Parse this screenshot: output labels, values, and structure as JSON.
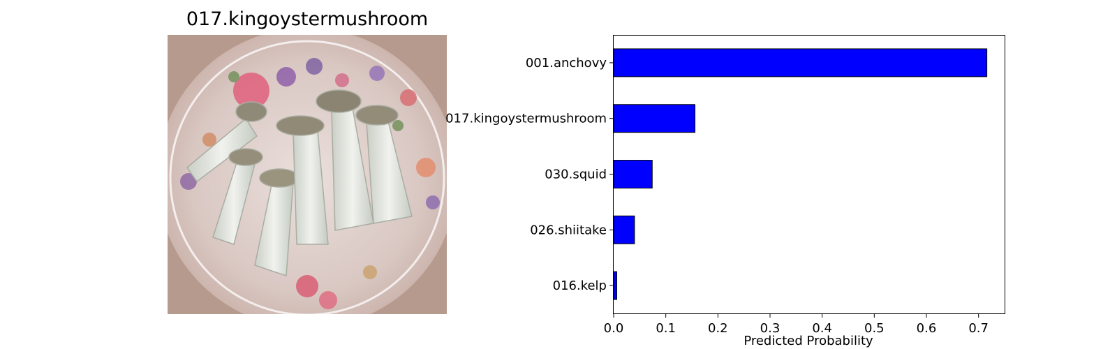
{
  "image_panel": {
    "title": "017.kingoystermushroom"
  },
  "chart_data": {
    "type": "bar",
    "orientation": "horizontal",
    "categories": [
      "001.anchovy",
      "017.kingoystermushroom",
      "030.squid",
      "026.shiitake",
      "016.kelp"
    ],
    "values": [
      0.716,
      0.156,
      0.074,
      0.04,
      0.006
    ],
    "xlabel": "Predicted Probability",
    "ylabel": "",
    "xlim": [
      0.0,
      0.75
    ],
    "xticks": [
      "0.0",
      "0.1",
      "0.2",
      "0.3",
      "0.4",
      "0.5",
      "0.6",
      "0.7"
    ],
    "bar_color": "#0000ff",
    "edge_color": "#000000",
    "grid": false
  }
}
